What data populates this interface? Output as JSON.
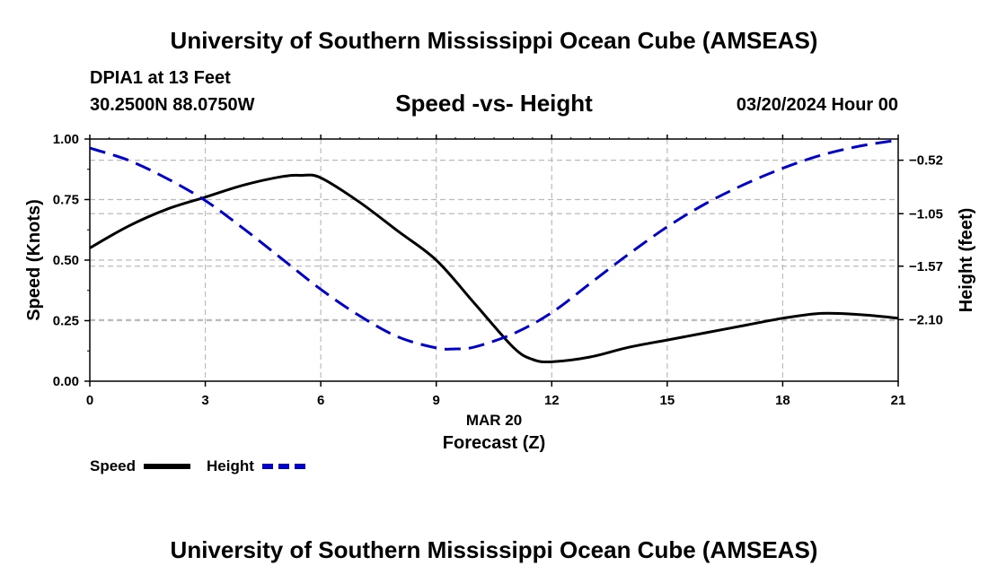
{
  "header": {
    "title": "University of Southern Mississippi Ocean Cube (AMSEAS)",
    "station": "DPIA1 at 13 Feet",
    "location": "30.2500N  88.0750W",
    "subtitle": "Speed -vs- Height",
    "datetime": "03/20/2024 Hour 00"
  },
  "footer": {
    "title": "University of Southern Mississippi Ocean Cube (AMSEAS)"
  },
  "legend": {
    "speed_label": "Speed",
    "height_label": "Height"
  },
  "colors": {
    "speed": "#000000",
    "height": "#0000cc",
    "grid": "#bbbbbb"
  },
  "chart_data": {
    "type": "line",
    "title": "Speed -vs- Height",
    "xlabel": "Forecast (Z)",
    "xlabel_date": "MAR 20",
    "ylabel": "Speed (Knots)",
    "y2label": "Height (feet)",
    "xlim": [
      0,
      21
    ],
    "ylim": [
      0,
      1
    ],
    "y2lim": [
      -2.71,
      -0.31
    ],
    "x_ticks": [
      0,
      3,
      6,
      9,
      12,
      15,
      18,
      21
    ],
    "x_tick_labels": [
      "0",
      "3",
      "6",
      "9",
      "12",
      "15",
      "18",
      "21"
    ],
    "y_ticks": [
      0,
      0.25,
      0.5,
      0.75,
      1.0
    ],
    "y_tick_labels": [
      "0.00",
      "0.25",
      "0.50",
      "0.75",
      "1.00"
    ],
    "y2_ticks": [
      -0.52,
      -1.05,
      -1.57,
      -2.1
    ],
    "y2_tick_labels": [
      "−0.52",
      "−1.05",
      "−1.57",
      "−2.10"
    ],
    "grid": true,
    "legend_position": "bottom-left",
    "series": [
      {
        "name": "Speed",
        "axis": "left",
        "style": "solid",
        "x": [
          0,
          1,
          2,
          3,
          4,
          5,
          5.5,
          6,
          7,
          8,
          9,
          10,
          11,
          11.5,
          12,
          13,
          14,
          15,
          16,
          17,
          18,
          19,
          20,
          21
        ],
        "values": [
          0.55,
          0.64,
          0.71,
          0.76,
          0.81,
          0.845,
          0.85,
          0.84,
          0.74,
          0.62,
          0.5,
          0.32,
          0.14,
          0.09,
          0.08,
          0.1,
          0.14,
          0.17,
          0.2,
          0.23,
          0.26,
          0.28,
          0.275,
          0.26
        ]
      },
      {
        "name": "Height",
        "axis": "right",
        "style": "dashed",
        "x": [
          0,
          1,
          2,
          3,
          4,
          5,
          6,
          7,
          8,
          9,
          9.5,
          10,
          11,
          12,
          13,
          14,
          15,
          16,
          17,
          18,
          19,
          20,
          21
        ],
        "values": [
          -0.4,
          -0.52,
          -0.7,
          -0.92,
          -1.2,
          -1.5,
          -1.8,
          -2.06,
          -2.27,
          -2.38,
          -2.39,
          -2.37,
          -2.24,
          -2.03,
          -1.74,
          -1.45,
          -1.18,
          -0.95,
          -0.76,
          -0.6,
          -0.47,
          -0.38,
          -0.32
        ]
      }
    ]
  }
}
